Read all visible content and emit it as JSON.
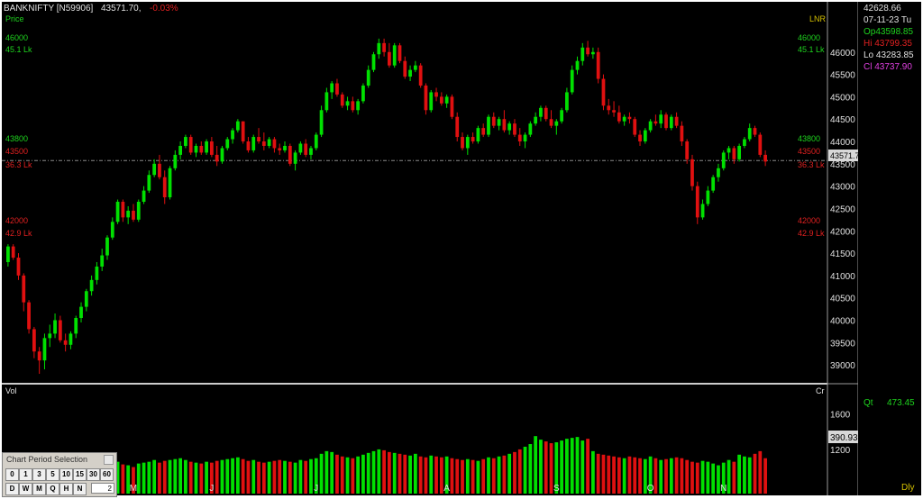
{
  "header": {
    "symbol": "BANKNIFTY [N59906]",
    "price": "43571.70,",
    "change": "-0.03%"
  },
  "price_pane": {
    "label": "Price",
    "scale_label": "LNR",
    "levels": [
      {
        "value": "46000",
        "volume": "45.1 Lk",
        "color": "#1ed41e"
      },
      {
        "value": "43800",
        "volume": "",
        "color": "#1ed41e"
      },
      {
        "value": "43500",
        "volume": "36.3 Lk",
        "color": "#e02020"
      },
      {
        "value": "42000",
        "volume": "42.9 Lk",
        "color": "#e02020"
      }
    ],
    "current_price_tag": "43571.7"
  },
  "volume_pane": {
    "label": "Vol",
    "unit_label": "Cr",
    "current_tag": "390.93"
  },
  "info_panel": {
    "value": "42628.66",
    "date": "07-11-23 Tu",
    "open": "Op43598.85",
    "high": "Hi 43799.35",
    "low": "Lo 43283.85",
    "close": "Cl 43737.90",
    "qty_label": "Qt",
    "qty_value": "473.45",
    "interval": "Dly"
  },
  "period_selector": {
    "title": "Chart Period Selection",
    "row1": [
      "0",
      "1",
      "3",
      "5",
      "10",
      "15",
      "30",
      "60"
    ],
    "row2": [
      "D",
      "W",
      "M",
      "Q",
      "H",
      "N"
    ],
    "input_value": "2"
  },
  "colors": {
    "up": "#00e000",
    "down": "#e01010",
    "background": "#000000"
  },
  "chart_data": {
    "type": "candlestick",
    "price_axis_ticks": [
      39000,
      39500,
      40000,
      40500,
      41000,
      41500,
      42000,
      42500,
      43000,
      43500,
      44000,
      44500,
      45000,
      45500,
      46000
    ],
    "volume_axis_ticks": [
      1200,
      1600
    ],
    "ylim": [
      38700,
      46600
    ],
    "volume_ylim": [
      700,
      1800
    ],
    "x_month_labels": [
      "M",
      "J",
      "J",
      "A",
      "S",
      "O",
      "N"
    ],
    "reference_line": 43571.7,
    "candles": [
      [
        41300,
        41700,
        41200,
        41650,
        1050
      ],
      [
        41650,
        41700,
        41350,
        41400,
        1000
      ],
      [
        41400,
        41500,
        40900,
        41000,
        980
      ],
      [
        41000,
        41050,
        40200,
        40400,
        1010
      ],
      [
        40400,
        40450,
        39700,
        39800,
        1050
      ],
      [
        39800,
        39850,
        39150,
        39300,
        1080
      ],
      [
        39300,
        39400,
        38800,
        39100,
        1020
      ],
      [
        39100,
        39700,
        38900,
        39600,
        1000
      ],
      [
        39600,
        39900,
        39400,
        39700,
        990
      ],
      [
        39700,
        40150,
        39600,
        40000,
        970
      ],
      [
        40000,
        40100,
        39500,
        39550,
        950
      ],
      [
        39550,
        39700,
        39300,
        39450,
        960
      ],
      [
        39450,
        39750,
        39350,
        39700,
        980
      ],
      [
        39700,
        40100,
        39600,
        40050,
        1000
      ],
      [
        40050,
        40400,
        39950,
        40300,
        1020
      ],
      [
        40300,
        40700,
        40200,
        40650,
        1010
      ],
      [
        40650,
        41000,
        40550,
        40900,
        1030
      ],
      [
        40900,
        41300,
        40800,
        41200,
        1060
      ],
      [
        41200,
        41600,
        41100,
        41450,
        1050
      ],
      [
        41450,
        41900,
        41350,
        41850,
        1080
      ],
      [
        41850,
        42300,
        41800,
        42200,
        1070
      ],
      [
        42200,
        42700,
        42150,
        42650,
        1060
      ],
      [
        42650,
        42700,
        42200,
        42300,
        1030
      ],
      [
        42300,
        42550,
        42150,
        42450,
        1020
      ],
      [
        42450,
        42600,
        42200,
        42250,
        1000
      ],
      [
        42250,
        42700,
        42200,
        42650,
        1040
      ],
      [
        42650,
        43000,
        42600,
        42900,
        1050
      ],
      [
        42900,
        43350,
        42850,
        43250,
        1060
      ],
      [
        43250,
        43600,
        43200,
        43500,
        1080
      ],
      [
        43500,
        43700,
        43150,
        43200,
        1050
      ],
      [
        43200,
        43350,
        42600,
        42750,
        1070
      ],
      [
        42750,
        43450,
        42700,
        43400,
        1080
      ],
      [
        43400,
        43800,
        43350,
        43700,
        1090
      ],
      [
        43700,
        44000,
        43600,
        43900,
        1100
      ],
      [
        43900,
        44150,
        43850,
        44100,
        1080
      ],
      [
        44100,
        44150,
        43700,
        43750,
        1060
      ],
      [
        43750,
        43950,
        43650,
        43900,
        1050
      ],
      [
        43900,
        44000,
        43700,
        43750,
        1040
      ],
      [
        43750,
        44050,
        43700,
        44000,
        1060
      ],
      [
        44000,
        44100,
        43650,
        43700,
        1050
      ],
      [
        43700,
        43900,
        43450,
        43550,
        1070
      ],
      [
        43550,
        43900,
        43500,
        43850,
        1080
      ],
      [
        43850,
        44100,
        43800,
        44050,
        1090
      ],
      [
        44050,
        44300,
        43950,
        44250,
        1100
      ],
      [
        44250,
        44500,
        44200,
        44450,
        1110
      ],
      [
        44450,
        44450,
        43950,
        44000,
        1090
      ],
      [
        44000,
        44100,
        43750,
        43800,
        1070
      ],
      [
        43800,
        44150,
        43750,
        44100,
        1080
      ],
      [
        44100,
        44300,
        43950,
        44000,
        1060
      ],
      [
        44000,
        44200,
        43800,
        43900,
        1050
      ],
      [
        43900,
        44100,
        43850,
        44050,
        1060
      ],
      [
        44050,
        44100,
        43750,
        43850,
        1070
      ],
      [
        43850,
        43950,
        43700,
        43800,
        1080
      ],
      [
        43800,
        44000,
        43750,
        43900,
        1070
      ],
      [
        43900,
        43950,
        43450,
        43500,
        1060
      ],
      [
        43500,
        43800,
        43350,
        43750,
        1050
      ],
      [
        43750,
        44000,
        43700,
        43950,
        1080
      ],
      [
        43950,
        44050,
        43650,
        43700,
        1070
      ],
      [
        43700,
        43900,
        43600,
        43850,
        1090
      ],
      [
        43850,
        44200,
        43800,
        44150,
        1100
      ],
      [
        44150,
        44800,
        44100,
        44700,
        1150
      ],
      [
        44700,
        45200,
        44650,
        45100,
        1180
      ],
      [
        45100,
        45350,
        44950,
        45300,
        1170
      ],
      [
        45300,
        45400,
        45000,
        45050,
        1140
      ],
      [
        45050,
        45100,
        44750,
        44800,
        1120
      ],
      [
        44800,
        45000,
        44700,
        44900,
        1110
      ],
      [
        44900,
        45000,
        44650,
        44700,
        1100
      ],
      [
        44700,
        44950,
        44600,
        44900,
        1120
      ],
      [
        44900,
        45300,
        44850,
        45250,
        1140
      ],
      [
        45250,
        45700,
        45200,
        45600,
        1160
      ],
      [
        45600,
        46000,
        45550,
        45950,
        1180
      ],
      [
        45950,
        46300,
        45850,
        46200,
        1200
      ],
      [
        46200,
        46300,
        45900,
        46000,
        1190
      ],
      [
        46000,
        46200,
        45650,
        45700,
        1170
      ],
      [
        45700,
        46200,
        45650,
        46150,
        1160
      ],
      [
        46150,
        46200,
        45750,
        45800,
        1150
      ],
      [
        45800,
        45900,
        45400,
        45450,
        1140
      ],
      [
        45450,
        45700,
        45350,
        45600,
        1130
      ],
      [
        45600,
        45800,
        45550,
        45700,
        1150
      ],
      [
        45700,
        45750,
        45200,
        45250,
        1120
      ],
      [
        45250,
        45300,
        44600,
        44700,
        1110
      ],
      [
        44700,
        45150,
        44650,
        45100,
        1130
      ],
      [
        45100,
        45200,
        44900,
        45000,
        1120
      ],
      [
        45000,
        45100,
        44800,
        44850,
        1110
      ],
      [
        44850,
        45050,
        44750,
        45000,
        1120
      ],
      [
        45000,
        45050,
        44500,
        44550,
        1100
      ],
      [
        44550,
        44650,
        44000,
        44100,
        1090
      ],
      [
        44100,
        44200,
        43800,
        43850,
        1080
      ],
      [
        43850,
        44150,
        43700,
        44100,
        1090
      ],
      [
        44100,
        44200,
        43950,
        44000,
        1080
      ],
      [
        44000,
        44350,
        43950,
        44300,
        1070
      ],
      [
        44300,
        44400,
        44100,
        44150,
        1090
      ],
      [
        44150,
        44600,
        44100,
        44550,
        1110
      ],
      [
        44550,
        44650,
        44300,
        44350,
        1100
      ],
      [
        44350,
        44550,
        44250,
        44500,
        1120
      ],
      [
        44500,
        44700,
        44200,
        44250,
        1130
      ],
      [
        44250,
        44450,
        44150,
        44400,
        1150
      ],
      [
        44400,
        44500,
        44100,
        44150,
        1170
      ],
      [
        44150,
        44300,
        43900,
        44000,
        1200
      ],
      [
        44000,
        44200,
        43850,
        44150,
        1230
      ],
      [
        44150,
        44450,
        44100,
        44400,
        1260
      ],
      [
        44400,
        44650,
        44350,
        44550,
        1350
      ],
      [
        44550,
        44800,
        44450,
        44750,
        1310
      ],
      [
        44750,
        44800,
        44450,
        44500,
        1290
      ],
      [
        44500,
        44700,
        44300,
        44350,
        1270
      ],
      [
        44350,
        44500,
        44150,
        44450,
        1280
      ],
      [
        44450,
        44750,
        44400,
        44700,
        1300
      ],
      [
        44700,
        45200,
        44650,
        45100,
        1320
      ],
      [
        45100,
        45700,
        45050,
        45600,
        1330
      ],
      [
        45600,
        45900,
        45500,
        45800,
        1340
      ],
      [
        45800,
        46200,
        45700,
        46100,
        1300
      ],
      [
        46100,
        46250,
        45900,
        45950,
        1320
      ],
      [
        45950,
        46100,
        45850,
        46000,
        1180
      ],
      [
        46000,
        46100,
        45300,
        45400,
        1150
      ],
      [
        45400,
        45500,
        44700,
        44800,
        1140
      ],
      [
        44800,
        44950,
        44600,
        44700,
        1130
      ],
      [
        44700,
        44900,
        44550,
        44650,
        1120
      ],
      [
        44650,
        44800,
        44400,
        44450,
        1110
      ],
      [
        44450,
        44600,
        44350,
        44550,
        1100
      ],
      [
        44550,
        44650,
        44400,
        44500,
        1120
      ],
      [
        44500,
        44550,
        44100,
        44150,
        1110
      ],
      [
        44150,
        44250,
        43900,
        44000,
        1100
      ],
      [
        44000,
        44300,
        43950,
        44250,
        1090
      ],
      [
        44250,
        44500,
        44200,
        44450,
        1120
      ],
      [
        44450,
        44600,
        44350,
        44400,
        1100
      ],
      [
        44400,
        44700,
        44300,
        44600,
        1080
      ],
      [
        44600,
        44650,
        44250,
        44300,
        1090
      ],
      [
        44300,
        44600,
        44250,
        44550,
        1100
      ],
      [
        44550,
        44650,
        44300,
        44350,
        1110
      ],
      [
        44350,
        44450,
        43900,
        44000,
        1100
      ],
      [
        44000,
        44050,
        43500,
        43600,
        1080
      ],
      [
        43600,
        43700,
        42900,
        43000,
        1060
      ],
      [
        43000,
        43100,
        42150,
        42300,
        1050
      ],
      [
        42300,
        42700,
        42250,
        42600,
        1070
      ],
      [
        42600,
        43000,
        42550,
        42900,
        1060
      ],
      [
        42900,
        43250,
        42850,
        43200,
        1040
      ],
      [
        43200,
        43500,
        43100,
        43400,
        1020
      ],
      [
        43400,
        43800,
        43350,
        43750,
        1050
      ],
      [
        43750,
        43900,
        43600,
        43850,
        1080
      ],
      [
        43850,
        43900,
        43500,
        43600,
        1060
      ],
      [
        43600,
        43950,
        43550,
        43900,
        1140
      ],
      [
        43900,
        44100,
        43850,
        44050,
        1120
      ],
      [
        44050,
        44400,
        44000,
        44300,
        1110
      ],
      [
        44300,
        44350,
        44100,
        44150,
        1150
      ],
      [
        44150,
        44200,
        43650,
        43700,
        1180
      ],
      [
        43700,
        43800,
        43450,
        43550,
        1100
      ]
    ]
  }
}
